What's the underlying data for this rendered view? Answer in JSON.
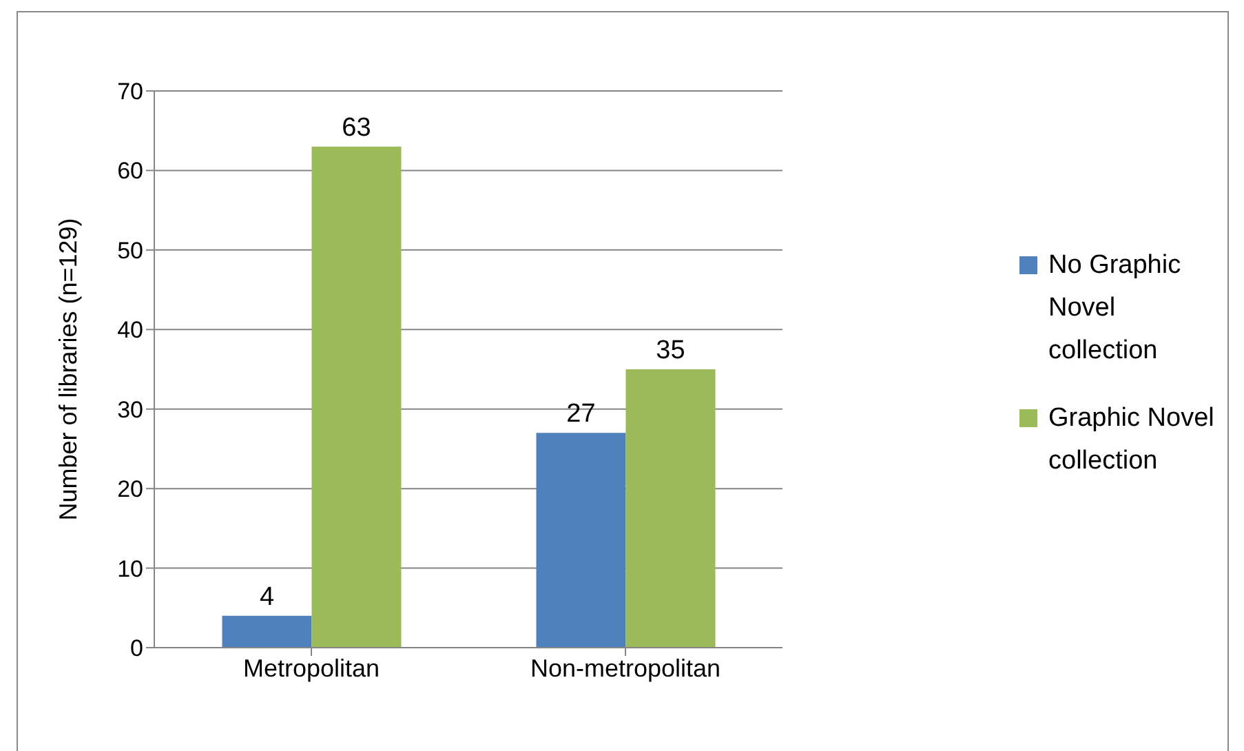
{
  "chart_data": {
    "type": "bar",
    "ylabel": "Number of libraries (n=129)",
    "categories": [
      "Metropolitan",
      "Non-metropolitan"
    ],
    "series": [
      {
        "name": "No Graphic Novel collection",
        "color": "#4f81bd",
        "values": [
          4,
          27
        ]
      },
      {
        "name": "Graphic Novel collection",
        "color": "#9bbb59",
        "values": [
          63,
          35
        ]
      }
    ],
    "ylim": [
      0,
      70
    ],
    "yticks": [
      0,
      10,
      20,
      30,
      40,
      50,
      60,
      70
    ],
    "grid": "y",
    "legend": "right",
    "data_labels": true
  }
}
